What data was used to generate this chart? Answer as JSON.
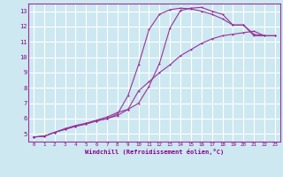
{
  "bg_color": "#cde8f0",
  "grid_color": "#ffffff",
  "line_color": "#993399",
  "xlabel": "Windchill (Refroidissement éolien,°C)",
  "xlabel_color": "#880088",
  "tick_color": "#880088",
  "xlim": [
    -0.5,
    23.5
  ],
  "ylim": [
    4.5,
    13.5
  ],
  "yticks": [
    5,
    6,
    7,
    8,
    9,
    10,
    11,
    12,
    13
  ],
  "xticks": [
    0,
    1,
    2,
    3,
    4,
    5,
    6,
    7,
    8,
    9,
    10,
    11,
    12,
    13,
    14,
    15,
    16,
    17,
    18,
    19,
    20,
    21,
    22,
    23
  ],
  "line1_x": [
    0,
    1,
    2,
    3,
    4,
    5,
    6,
    7,
    8,
    9,
    10,
    11,
    12,
    13,
    14,
    15,
    16,
    17,
    18,
    19,
    20,
    21,
    22,
    23
  ],
  "line1_y": [
    4.8,
    4.85,
    5.1,
    5.3,
    5.5,
    5.65,
    5.85,
    6.0,
    6.2,
    6.6,
    7.8,
    8.4,
    9.0,
    9.5,
    10.1,
    10.5,
    10.9,
    11.2,
    11.4,
    11.5,
    11.6,
    11.7,
    11.4,
    11.4
  ],
  "line2_x": [
    0,
    1,
    2,
    3,
    4,
    5,
    6,
    7,
    8,
    9,
    10,
    11,
    12,
    13,
    14,
    15,
    16,
    17,
    18,
    19,
    20,
    21,
    22,
    23
  ],
  "line2_y": [
    4.8,
    4.85,
    5.1,
    5.3,
    5.5,
    5.65,
    5.85,
    6.0,
    6.3,
    7.5,
    9.5,
    11.8,
    12.8,
    13.1,
    13.2,
    13.15,
    13.0,
    12.8,
    12.5,
    12.1,
    12.1,
    11.4,
    11.4,
    11.4
  ],
  "line3_x": [
    0,
    1,
    2,
    3,
    4,
    5,
    6,
    7,
    8,
    9,
    10,
    11,
    12,
    13,
    14,
    15,
    16,
    17,
    18,
    19,
    20,
    21,
    22,
    23
  ],
  "line3_y": [
    4.8,
    4.85,
    5.1,
    5.35,
    5.55,
    5.7,
    5.9,
    6.1,
    6.4,
    6.6,
    7.0,
    8.1,
    9.6,
    11.9,
    13.05,
    13.2,
    13.25,
    13.0,
    12.8,
    12.1,
    12.1,
    11.5,
    11.4,
    11.4
  ]
}
